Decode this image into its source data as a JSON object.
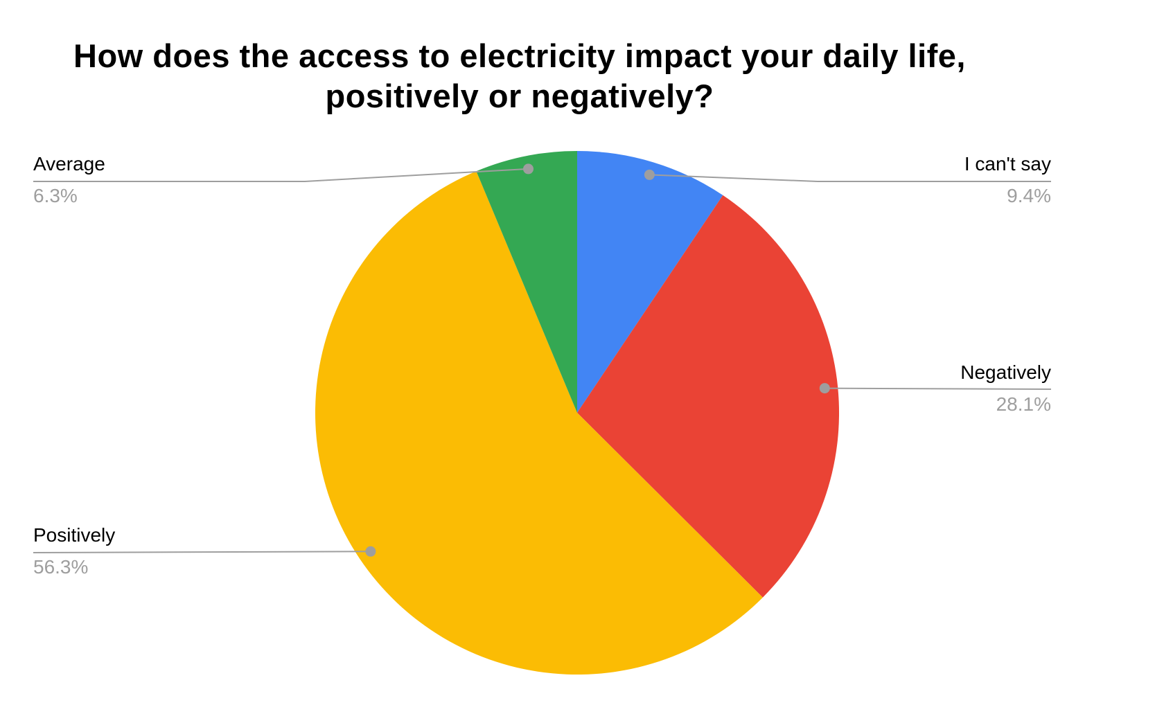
{
  "chart_data": {
    "type": "pie",
    "title": "How does the access to electricity impact your daily life, positively or negatively?",
    "title_lines": [
      "How does the access to electricity impact your daily life,",
      "positively or negatively?"
    ],
    "slices": [
      {
        "label": "I can't say",
        "value": 9.4,
        "pct_label": "9.4%",
        "color": "#4285F4"
      },
      {
        "label": "Negatively",
        "value": 28.1,
        "pct_label": "28.1%",
        "color": "#EA4335"
      },
      {
        "label": "Positively",
        "value": 56.3,
        "pct_label": "56.3%",
        "color": "#FBBC04"
      },
      {
        "label": "Average",
        "value": 6.3,
        "pct_label": "6.3%",
        "color": "#34A853"
      }
    ],
    "start_angle_deg": 0,
    "direction": "clockwise",
    "legend_position": "labeled-callouts",
    "background": "#FFFFFF",
    "title_color": "#000000",
    "label_color": "#000000",
    "pct_color": "#9E9E9E",
    "leader_color": "#9E9E9E"
  }
}
